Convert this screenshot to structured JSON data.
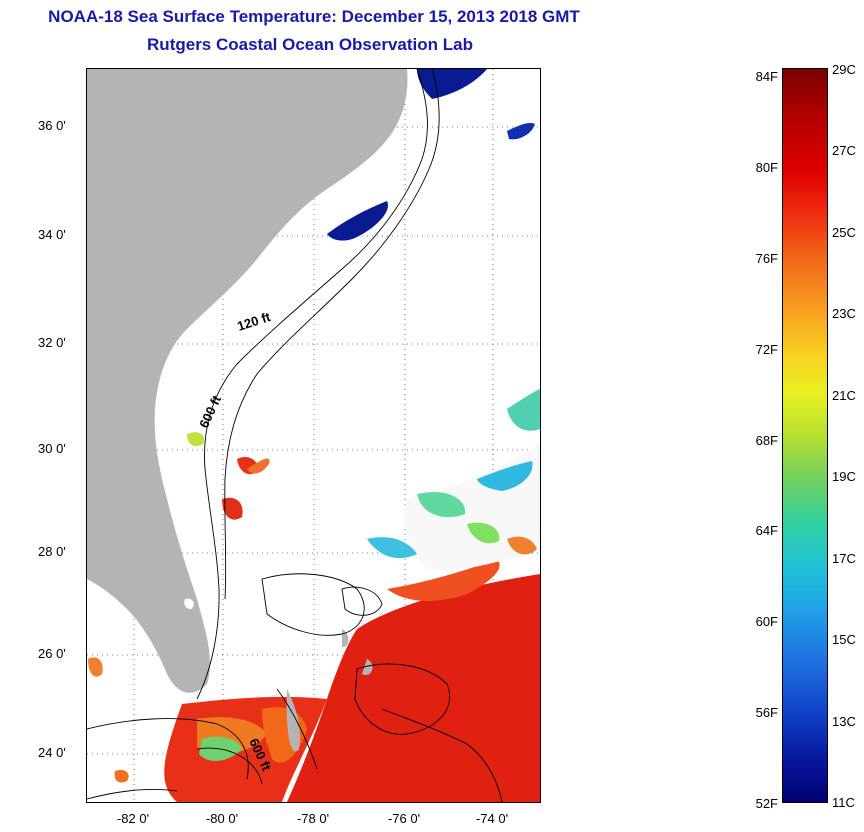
{
  "title_line1": "NOAA-18 Sea Surface Temperature:  December 15, 2013 2018 GMT",
  "title_line2": "Rutgers Coastal Ocean Observation Lab",
  "map": {
    "lat_labels": [
      "36 0'",
      "34 0'",
      "32 0'",
      "30 0'",
      "28 0'",
      "26 0'",
      "24 0'"
    ],
    "lon_labels": [
      "-82 0'",
      "-80 0'",
      "-78 0'",
      "-76 0'",
      "-74 0'"
    ],
    "contour_labels": [
      "120 ft",
      "600 ft",
      "600 ft"
    ],
    "colors": {
      "land": "#b4b4b4",
      "ocean_no_data": "#ffffff",
      "warm": "#e82010",
      "cold": "#0a1a90"
    }
  },
  "colorbar": {
    "fahrenheit_labels": [
      "84F",
      "80F",
      "76F",
      "72F",
      "68F",
      "64F",
      "60F",
      "56F",
      "52F"
    ],
    "celsius_labels": [
      "29C",
      "27C",
      "25C",
      "23C",
      "21C",
      "19C",
      "17C",
      "15C",
      "13C",
      "11C"
    ]
  }
}
